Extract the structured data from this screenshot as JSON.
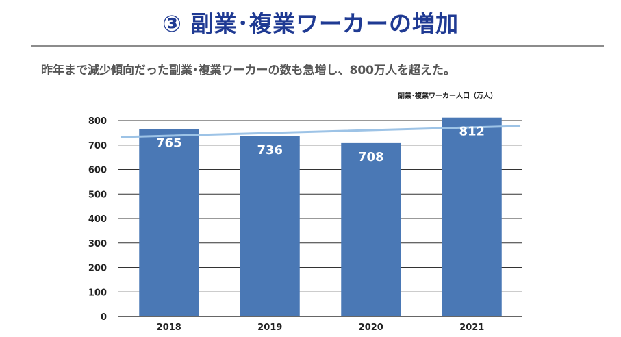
{
  "header": {
    "title": "③ 副業･複業ワーカーの増加",
    "subtitle": "昨年まで減少傾向だった副業･複業ワーカーの数も急増し、800万人を超えた。"
  },
  "chart_data": {
    "type": "bar",
    "categories": [
      "2018",
      "2019",
      "2020",
      "2021"
    ],
    "series": [
      {
        "name": "副業･複業ワーカー人口（万人）",
        "values": [
          765,
          736,
          708,
          812
        ]
      }
    ],
    "data_labels": [
      "765",
      "736",
      "708",
      "812"
    ],
    "trendline": {
      "type": "linear"
    },
    "ylim": [
      0,
      800
    ],
    "yticks": [
      0,
      100,
      200,
      300,
      400,
      500,
      600,
      700,
      800
    ],
    "grid": true,
    "legend_position": "top-right",
    "colors": {
      "bar": "#4a78b5",
      "trendline": "#9dc3e6",
      "grid": "#333333"
    }
  }
}
